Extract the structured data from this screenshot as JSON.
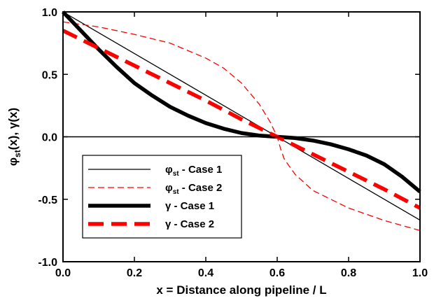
{
  "chart_data": {
    "type": "line",
    "xlabel": "x = Distance along pipeline / L",
    "ylabel": "φst(x), γ(x)",
    "ylabel_parts": {
      "sym1": "φ",
      "sub1": "st",
      "rest1": "(x), ",
      "sym2": "γ",
      "rest2": "(x)"
    },
    "xlim": [
      0.0,
      1.0
    ],
    "ylim": [
      -1.0,
      1.0
    ],
    "xticks": [
      0.0,
      0.2,
      0.4,
      0.6,
      0.8,
      1.0
    ],
    "xtick_labels": [
      "0.0",
      "0.2",
      "0.4",
      "0.6",
      "0.8",
      "1.0"
    ],
    "yticks": [
      1.0,
      0.5,
      0.0,
      -0.5,
      -1.0
    ],
    "ytick_labels": [
      "1.0",
      "0.5",
      "0.0",
      "-0.5",
      "-1.0"
    ],
    "zero_line": true,
    "grid": false,
    "legend_placement": "lower-left",
    "series": [
      {
        "name": "φst - Case 1",
        "legend": {
          "sym": "φ",
          "sub": "st",
          "rest": " - Case 1"
        },
        "color": "#000000",
        "style": "solid-thin",
        "x": [
          0.0,
          1.0
        ],
        "y": [
          1.0,
          -0.667
        ]
      },
      {
        "name": "φst - Case 2",
        "legend": {
          "sym": "φ",
          "sub": "st",
          "rest": " - Case 2"
        },
        "color": "#ff0000",
        "style": "dashed-thin",
        "x": [
          0.0,
          0.1,
          0.2,
          0.3,
          0.4,
          0.45,
          0.5,
          0.55,
          0.58,
          0.59,
          0.6,
          0.61,
          0.62,
          0.65,
          0.7,
          0.8,
          0.9,
          1.0
        ],
        "y": [
          0.92,
          0.88,
          0.82,
          0.75,
          0.63,
          0.55,
          0.43,
          0.26,
          0.12,
          0.06,
          0.0,
          -0.1,
          -0.18,
          -0.3,
          -0.43,
          -0.57,
          -0.67,
          -0.75
        ]
      },
      {
        "name": "γ - Case 1",
        "legend": {
          "sym": "γ",
          "sub": "",
          "rest": " - Case 1"
        },
        "color": "#000000",
        "style": "solid-thick",
        "x": [
          0.0,
          0.05,
          0.1,
          0.15,
          0.2,
          0.25,
          0.3,
          0.35,
          0.4,
          0.45,
          0.5,
          0.55,
          0.6,
          0.65,
          0.7,
          0.75,
          0.8,
          0.85,
          0.9,
          0.95,
          1.0
        ],
        "y": [
          1.0,
          0.85,
          0.7,
          0.56,
          0.43,
          0.33,
          0.24,
          0.17,
          0.11,
          0.065,
          0.03,
          0.01,
          0.0,
          -0.01,
          -0.03,
          -0.06,
          -0.1,
          -0.15,
          -0.22,
          -0.32,
          -0.44
        ]
      },
      {
        "name": "γ - Case 2",
        "legend": {
          "sym": "γ",
          "sub": "",
          "rest": " - Case 2"
        },
        "color": "#ff0000",
        "style": "dashed-thick",
        "x": [
          0.0,
          0.1,
          0.2,
          0.3,
          0.4,
          0.5,
          0.6,
          0.7,
          0.8,
          0.9,
          1.0
        ],
        "y": [
          0.85,
          0.71,
          0.57,
          0.43,
          0.29,
          0.14,
          0.0,
          -0.14,
          -0.28,
          -0.42,
          -0.57
        ]
      }
    ]
  }
}
